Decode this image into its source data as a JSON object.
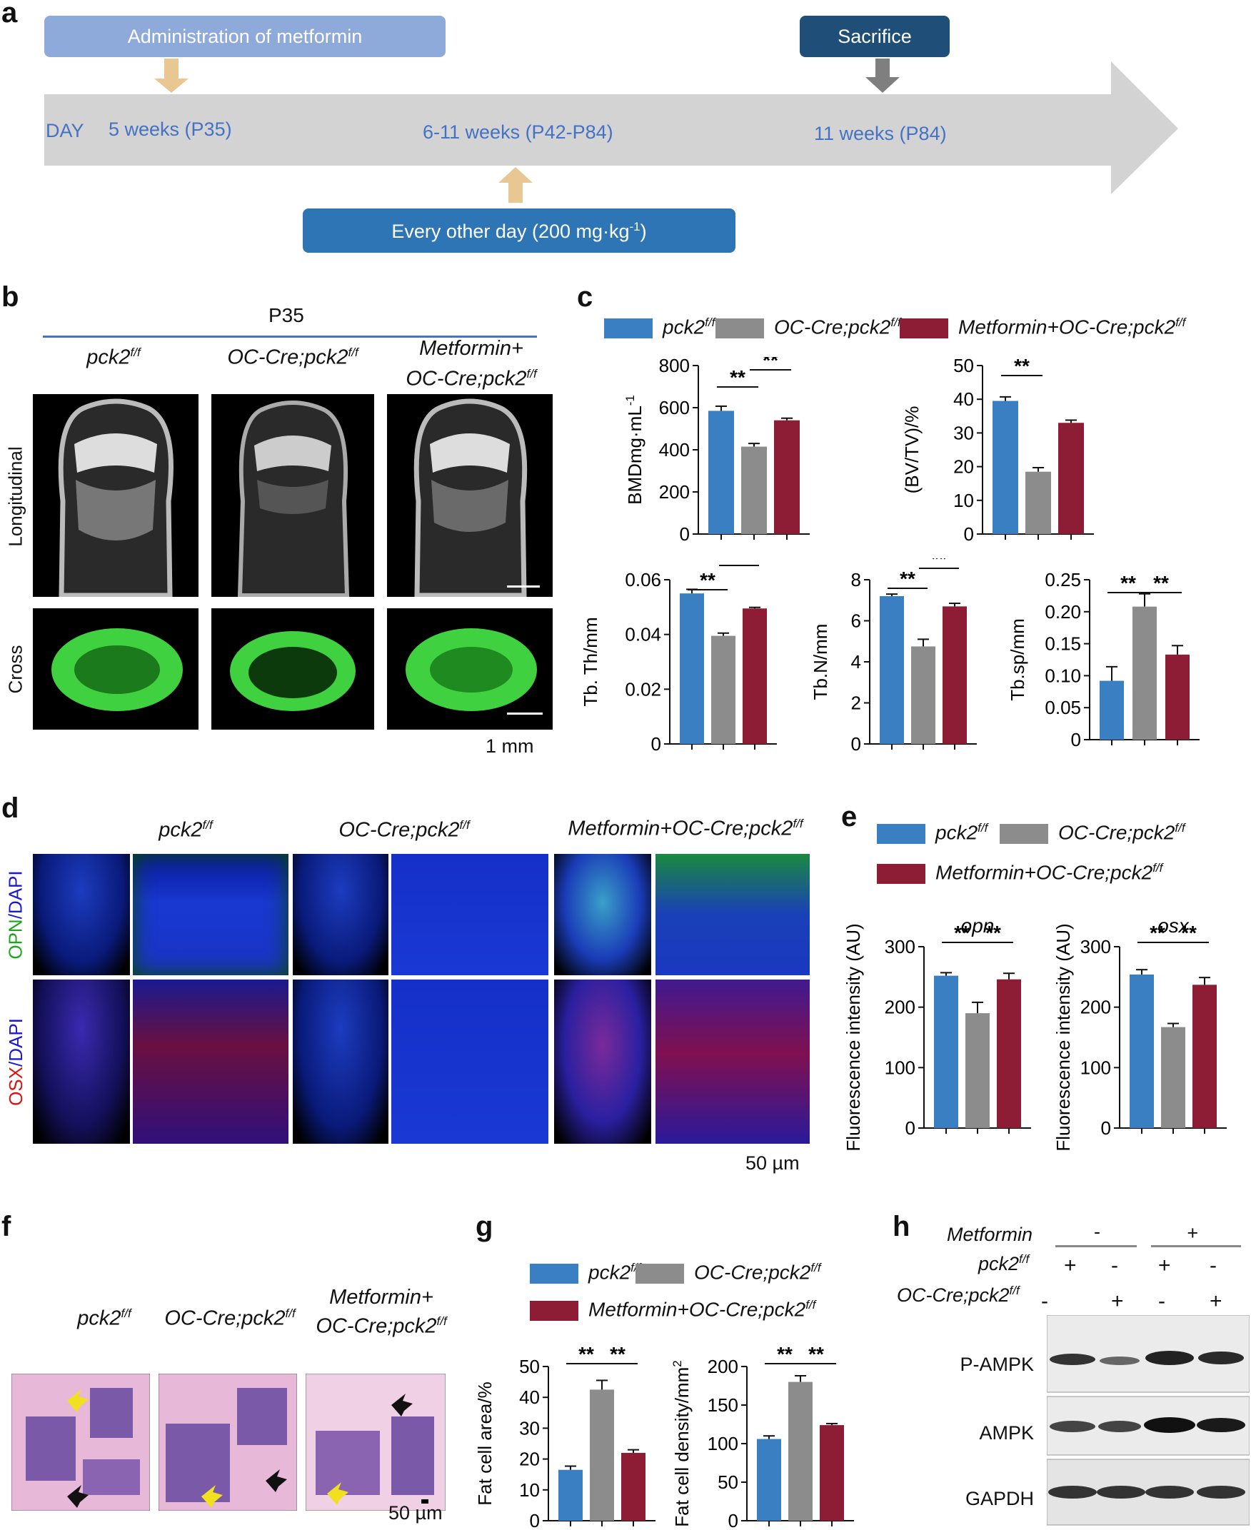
{
  "panels": {
    "a": "a",
    "b": "b",
    "c": "c",
    "d": "d",
    "e": "e",
    "f": "f",
    "g": "g",
    "h": "h"
  },
  "colors": {
    "blue": "#3a7fc1",
    "gray": "#8c8c8c",
    "red": "#8c1d35",
    "timeline": "#d3d3d3",
    "light_box": "#8eaadb",
    "dark_box": "#1f4e79",
    "mid_box": "#2e75b6",
    "arrow_tan": "#e8c792",
    "arrow_gray": "#7f7f7f",
    "text_blue": "#4472c4"
  },
  "timeline": {
    "admin_label": "Administration of metformin",
    "sacrifice_label": "Sacrifice",
    "day_label": "DAY",
    "t1": "5 weeks (P35)",
    "t2": "6-11 weeks (P42-P84)",
    "t3": "11 weeks (P84)",
    "dose_label": "Every other day (200 mg·kg",
    "dose_sup": "-1",
    "dose_end": ")"
  },
  "groups": {
    "g1": "pck2",
    "g2": "OC-Cre;pck2",
    "g3": "Metformin+OC-Cre;pck2",
    "g3a": "Metformin+",
    "g3b": "OC-Cre;pck2",
    "sup": "f/f"
  },
  "panel_b": {
    "age": "P35",
    "row1": "Longitudinal",
    "row2": "Cross",
    "scale": "1 mm"
  },
  "panel_d": {
    "row1a": "OPN",
    "row1b": "/DAPI",
    "row2a": "OSX",
    "row2b": "/DAPI",
    "scale": "50 µm"
  },
  "panel_f": {
    "scale": "50 µm"
  },
  "sig": "**",
  "chart_data": [
    {
      "type": "bar",
      "panel": "c",
      "ylabel": "BMDmg·mL",
      "ylabel_sup": "-1",
      "ylim": [
        0,
        800
      ],
      "ticks": [
        0,
        200,
        400,
        600,
        800
      ],
      "categories": [
        "pck2f/f",
        "OC-Cre;pck2f/f",
        "Metformin+OC-Cre;pck2f/f"
      ],
      "values": [
        585,
        415,
        540
      ],
      "errors": [
        22,
        15,
        10
      ]
    },
    {
      "type": "bar",
      "panel": "c",
      "ylabel": "(BV/TV)/%",
      "ylim": [
        0,
        50
      ],
      "ticks": [
        0,
        10,
        20,
        30,
        40,
        50
      ],
      "categories": [
        "pck2f/f",
        "OC-Cre;pck2f/f",
        "Metformin+OC-Cre;pck2f/f"
      ],
      "values": [
        39.5,
        18.5,
        33
      ],
      "errors": [
        1.2,
        1.2,
        0.8
      ]
    },
    {
      "type": "bar",
      "panel": "c",
      "ylabel": "Tb. Th/mm",
      "ylim": [
        0,
        0.06
      ],
      "ticks": [
        "0",
        "0.02",
        "0.04",
        "0.06"
      ],
      "categories": [
        "pck2f/f",
        "OC-Cre;pck2f/f",
        "Metformin+OC-Cre;pck2f/f"
      ],
      "values": [
        0.055,
        0.0395,
        0.0495
      ],
      "errors": [
        0.0015,
        0.001,
        0.0004
      ]
    },
    {
      "type": "bar",
      "panel": "c",
      "ylabel": "Tb.N/mm",
      "ylim": [
        0,
        8
      ],
      "ticks": [
        0,
        2,
        4,
        6,
        8
      ],
      "categories": [
        "pck2f/f",
        "OC-Cre;pck2f/f",
        "Metformin+OC-Cre;pck2f/f"
      ],
      "values": [
        7.2,
        4.75,
        6.7
      ],
      "errors": [
        0.1,
        0.35,
        0.15
      ]
    },
    {
      "type": "bar",
      "panel": "c",
      "ylabel": "Tb.sp/mm",
      "ylim": [
        0,
        0.25
      ],
      "ticks": [
        "0",
        "0.05",
        "0.10",
        "0.15",
        "0.20",
        "0.25"
      ],
      "categories": [
        "pck2f/f",
        "OC-Cre;pck2f/f",
        "Metformin+OC-Cre;pck2f/f"
      ],
      "values": [
        0.092,
        0.208,
        0.133
      ],
      "errors": [
        0.022,
        0.02,
        0.014
      ]
    },
    {
      "type": "bar",
      "panel": "e",
      "title": "opn",
      "ylabel": "Fluorescence intensity (AU)",
      "ylim": [
        0,
        300
      ],
      "ticks": [
        0,
        100,
        200,
        300
      ],
      "categories": [
        "pck2f/f",
        "OC-Cre;pck2f/f",
        "Metformin+OC-Cre;pck2f/f"
      ],
      "values": [
        252,
        190,
        246
      ],
      "errors": [
        5,
        18,
        10
      ]
    },
    {
      "type": "bar",
      "panel": "e",
      "title": "osx",
      "ylabel": "Fluorescence intensity (AU)",
      "ylim": [
        0,
        300
      ],
      "ticks": [
        0,
        100,
        200,
        300
      ],
      "categories": [
        "pck2f/f",
        "OC-Cre;pck2f/f",
        "Metformin+OC-Cre;pck2f/f"
      ],
      "values": [
        254,
        167,
        237
      ],
      "errors": [
        8,
        6,
        12
      ]
    },
    {
      "type": "bar",
      "panel": "g",
      "ylabel": "Fat cell area/%",
      "ylim": [
        0,
        50
      ],
      "ticks": [
        0,
        10,
        20,
        30,
        40,
        50
      ],
      "categories": [
        "pck2f/f",
        "OC-Cre;pck2f/f",
        "Metformin+OC-Cre;pck2f/f"
      ],
      "values": [
        16.5,
        42.5,
        22
      ],
      "errors": [
        1.2,
        3,
        1
      ]
    },
    {
      "type": "bar",
      "panel": "g",
      "ylabel": "Fat cell density/mm",
      "ylabel_sup": "2",
      "ylim": [
        0,
        200
      ],
      "ticks": [
        0,
        50,
        100,
        150,
        200
      ],
      "categories": [
        "pck2f/f",
        "OC-Cre;pck2f/f",
        "Metformin+OC-Cre;pck2f/f"
      ],
      "values": [
        106,
        180,
        124
      ],
      "errors": [
        4,
        8,
        2
      ]
    }
  ],
  "western": {
    "metformin_label": "Metformin",
    "pck2_label": "pck2",
    "oc_label": "OC-Cre;pck2",
    "minus": "-",
    "plus": "+",
    "pck2_row": [
      "+",
      "-",
      "+",
      "-"
    ],
    "oc_row": [
      "-",
      "+",
      "-",
      "+"
    ],
    "bands": [
      "P-AMPK",
      "AMPK",
      "GAPDH"
    ]
  }
}
